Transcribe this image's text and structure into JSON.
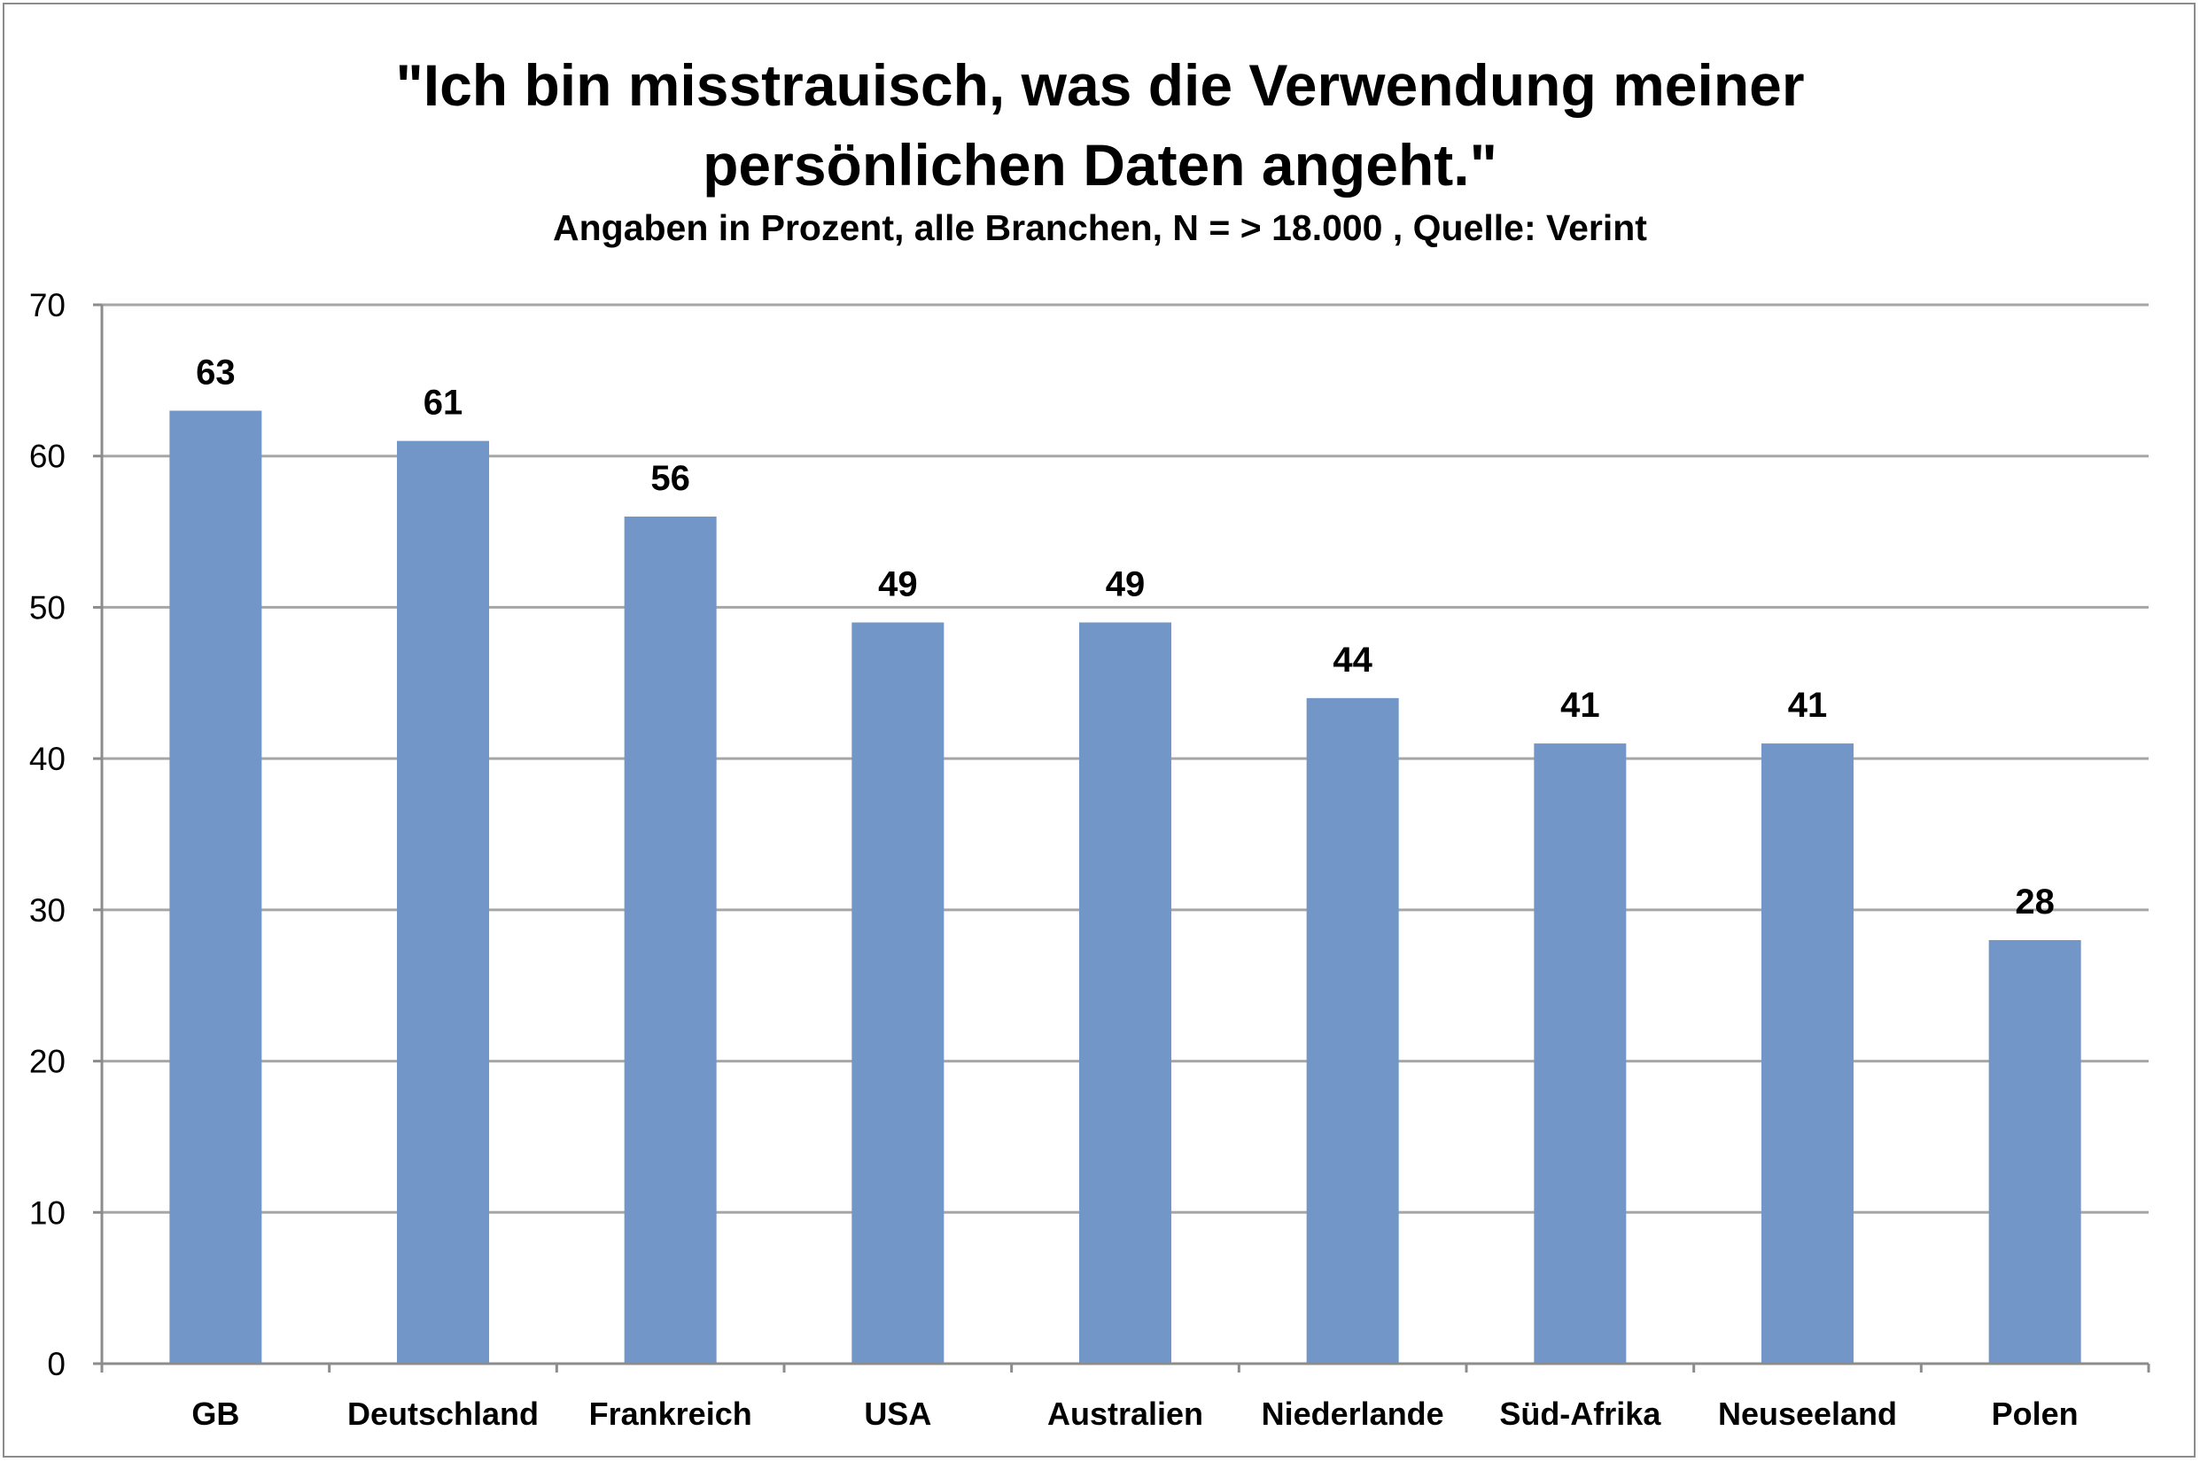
{
  "chart_data": {
    "type": "bar",
    "title_lines": [
      "\"Ich bin misstrauisch, was die Verwendung meiner",
      "persönlichen Daten angeht.\""
    ],
    "subtitle": "Angaben in Prozent, alle Branchen, N = > 18.000 , Quelle: Verint",
    "categories": [
      "GB",
      "Deutschland",
      "Frankreich",
      "USA",
      "Australien",
      "Niederlande",
      "Süd-Afrika",
      "Neuseeland",
      "Polen"
    ],
    "values": [
      63,
      61,
      56,
      49,
      49,
      44,
      41,
      41,
      28
    ],
    "data_labels": [
      "63",
      "61",
      "56",
      "49",
      "49",
      "44",
      "41",
      "41",
      "28"
    ],
    "xlabel": "",
    "ylabel": "",
    "ylim": [
      0,
      70
    ],
    "yticks": [
      0,
      10,
      20,
      30,
      40,
      50,
      60,
      70
    ],
    "grid": true,
    "legend": "none",
    "colors": {
      "bar": "#7396c8",
      "grid": "#a6a6a6",
      "axis": "#8c8c8c",
      "text": "#000000"
    }
  }
}
